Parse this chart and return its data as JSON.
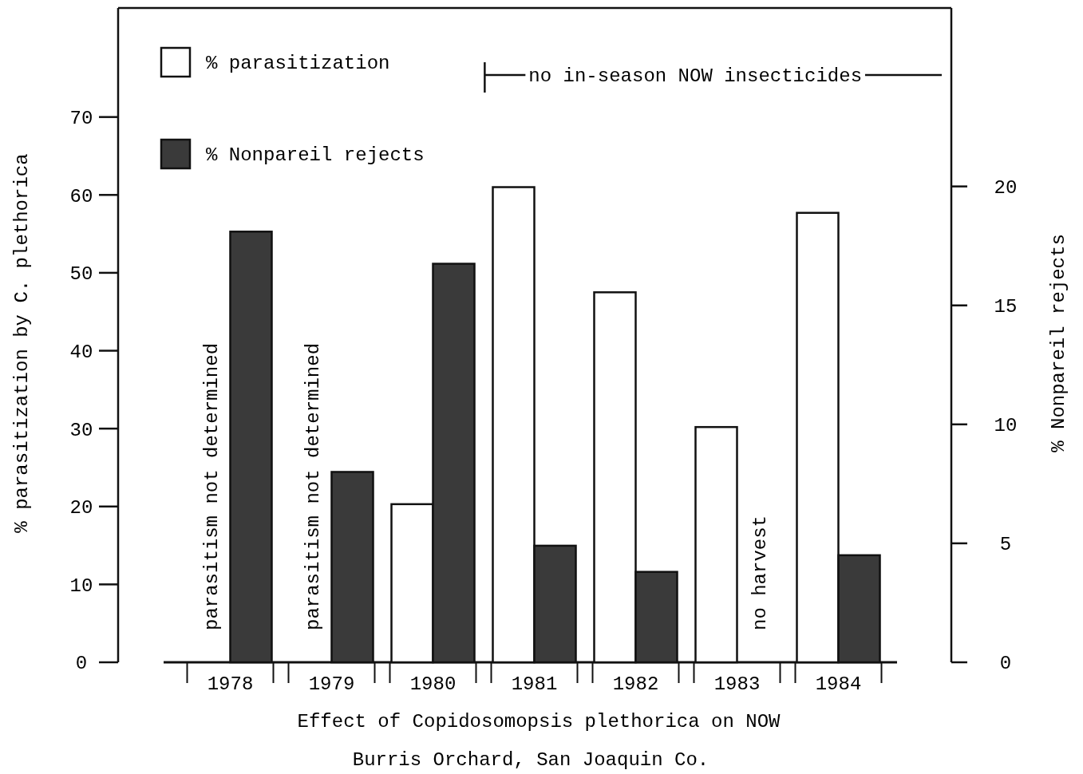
{
  "chart_data": {
    "type": "bar",
    "title": "Effect of Copidosomopsis plethorica on NOW",
    "subtitle": "Burris Orchard, San Joaquin Co.",
    "ylabel": "% parasitization by C. plethorica",
    "y2label": "% Nonpareil rejects",
    "categories": [
      "1978",
      "1979",
      "1980",
      "1981",
      "1982",
      "1983",
      "1984"
    ],
    "series": [
      {
        "name": "% parasitization",
        "color": "#ffffff",
        "values": [
          null,
          null,
          20.3,
          61.0,
          47.5,
          30.2,
          57.7
        ]
      },
      {
        "name": "% Nonpareil rejects",
        "color": "#3a3a3a",
        "axis": "y2",
        "values": [
          18.1,
          8.0,
          16.75,
          4.9,
          3.8,
          null,
          4.5
        ]
      }
    ],
    "ylim": [
      0,
      84
    ],
    "yticks": [
      0,
      10,
      20,
      30,
      40,
      50,
      60,
      70
    ],
    "y2lim": [
      0,
      27.5
    ],
    "y2ticks": [
      0,
      5,
      10,
      15,
      20
    ],
    "legend": "top left",
    "grid": false,
    "annotations": [
      {
        "text": "parasitism not determined",
        "x": "1978"
      },
      {
        "text": "parasitism not determined",
        "x": "1979"
      },
      {
        "text": "no harvest",
        "x": "1983"
      },
      "no in-season NOW insecticides"
    ]
  }
}
